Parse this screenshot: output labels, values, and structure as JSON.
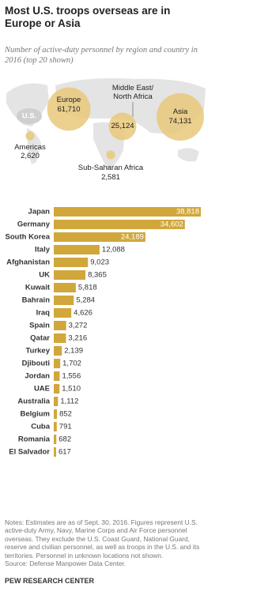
{
  "title": "Most U.S. troops overseas are in Europe or Asia",
  "subtitle": "Number of active-duty personnel by region and country in 2016 (top 20 shown)",
  "chart_data": [
    {
      "type": "bubble-map",
      "map_label": "U.S.",
      "categories": [
        "Europe",
        "Middle East/ North Africa",
        "Asia",
        "Americas",
        "Sub-Saharan Africa"
      ],
      "values": [
        61710,
        25124,
        74131,
        2620,
        2581
      ],
      "value_labels": [
        "61,710",
        "25,124",
        "74,131",
        "2,620",
        "2,581"
      ],
      "color": "#e9c87a"
    },
    {
      "type": "bar",
      "categories": [
        "Japan",
        "Germany",
        "South Korea",
        "Italy",
        "Afghanistan",
        "UK",
        "Kuwait",
        "Bahrain",
        "Iraq",
        "Spain",
        "Qatar",
        "Turkey",
        "Djibouti",
        "Jordan",
        "UAE",
        "Australia",
        "Belgium",
        "Cuba",
        "Romania",
        "El Salvador"
      ],
      "values": [
        38818,
        34602,
        24189,
        12088,
        9023,
        8365,
        5818,
        5284,
        4626,
        3272,
        3216,
        2139,
        1702,
        1556,
        1510,
        1112,
        852,
        791,
        682,
        617
      ],
      "value_labels": [
        "38,818",
        "34,602",
        "24,189",
        "12,088",
        "9,023",
        "8,365",
        "5,818",
        "5,284",
        "4,626",
        "3,272",
        "3,216",
        "2,139",
        "1,702",
        "1,556",
        "1,510",
        "1,112",
        "852",
        "791",
        "682",
        "617"
      ],
      "color": "#d1a73c"
    }
  ],
  "notes": "Notes: Estimates are as of Sept. 30, 2016. Figures represent U.S. active-duty Army, Navy, Marine Corps and Air Force personnel overseas. They exclude the U.S. Coast Guard, National Guard, reserve and civilian personnel, as well as troops in the U.S. and its territories. Personnel in unknown locations not shown.",
  "source": "Source: Defense Manpower Data Center.",
  "footer": "PEW RESEARCH CENTER"
}
